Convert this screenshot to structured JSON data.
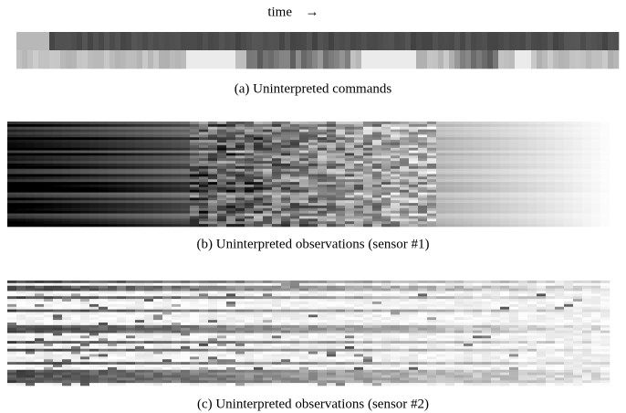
{
  "header": {
    "label": "time",
    "arrow": "→"
  },
  "panels": [
    {
      "caption": "(a) Uninterpreted commands"
    },
    {
      "caption": "(b) Uninterpreted observations (sensor #1)"
    },
    {
      "caption": "(c) Uninterpreted observations (sensor #2)"
    }
  ]
}
